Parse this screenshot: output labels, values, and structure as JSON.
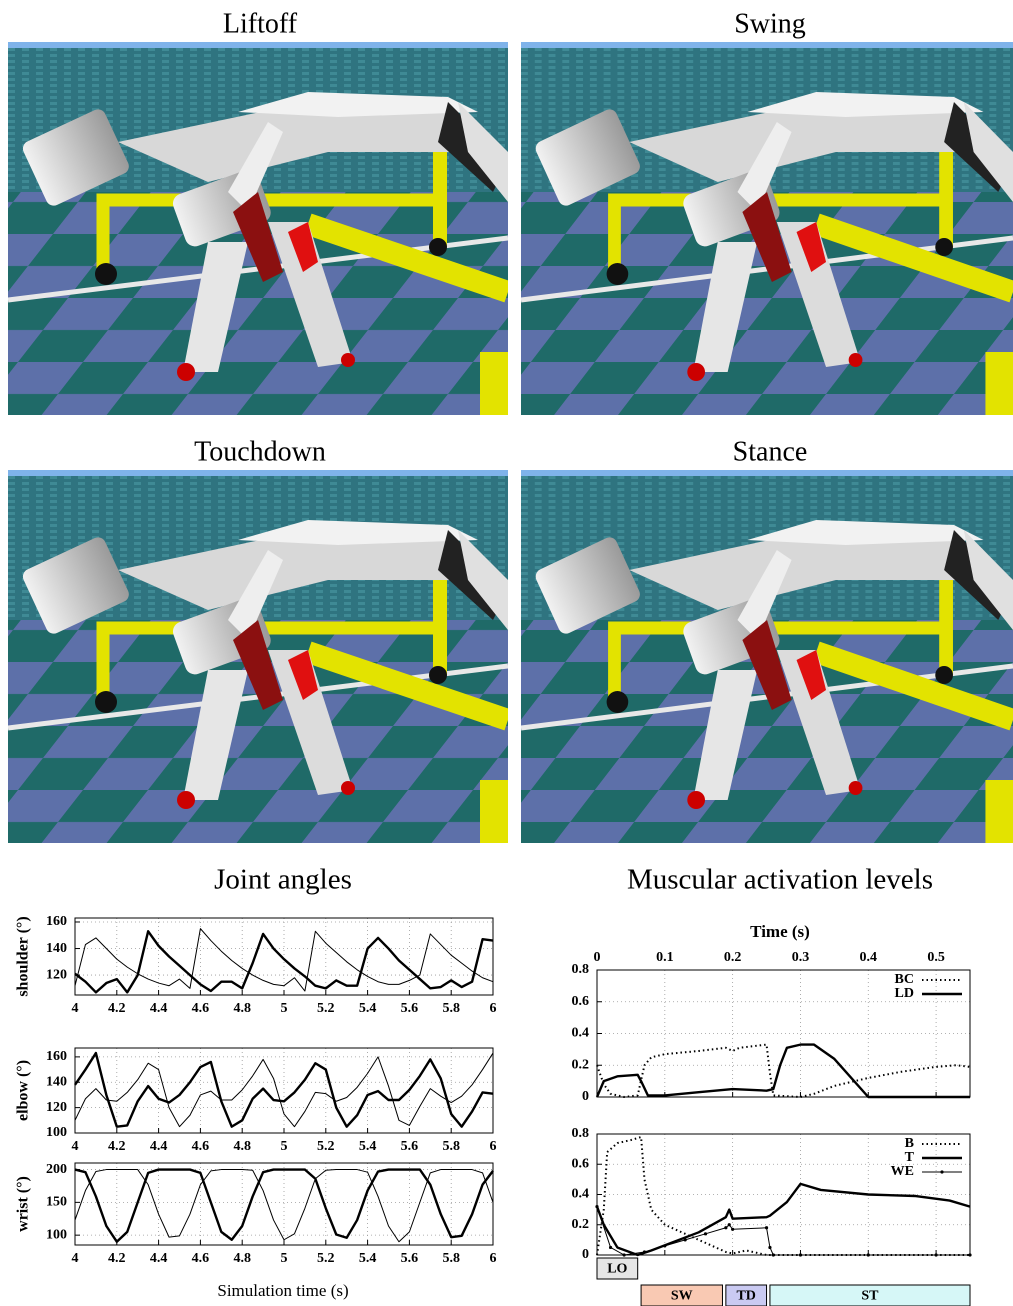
{
  "panels": [
    {
      "title": "Liftoff"
    },
    {
      "title": "Swing"
    },
    {
      "title": "Touchdown"
    },
    {
      "title": "Stance"
    }
  ],
  "chart_data": [
    {
      "type": "line",
      "title": "Joint angles",
      "xlabel": "Simulation time (s)",
      "grid": true,
      "x": [
        4,
        4.05,
        4.1,
        4.15,
        4.2,
        4.25,
        4.3,
        4.35,
        4.4,
        4.45,
        4.5,
        4.55,
        4.6,
        4.65,
        4.7,
        4.75,
        4.8,
        4.85,
        4.9,
        4.95,
        5,
        5.05,
        5.1,
        5.15,
        5.2,
        5.25,
        5.3,
        5.35,
        5.4,
        5.45,
        5.5,
        5.55,
        5.6,
        5.65,
        5.7,
        5.75,
        5.8,
        5.85,
        5.9,
        5.95,
        6
      ],
      "xlim": [
        4,
        6
      ],
      "xticks": [
        4,
        4.2,
        4.4,
        4.6,
        4.8,
        5,
        5.2,
        5.4,
        5.6,
        5.8,
        6
      ],
      "subplots": [
        {
          "ylabel": "shoulder (°)",
          "ylim": [
            105,
            163
          ],
          "yticks": [
            120,
            140,
            160
          ],
          "series": [
            {
              "color": "#000000",
              "style": "thick",
              "values": [
                121,
                115,
                107,
                114,
                117,
                107,
                120,
                153,
                142,
                134,
                127,
                120,
                113,
                108,
                115,
                115,
                110,
                129,
                151,
                140,
                132,
                125,
                119,
                112,
                110,
                116,
                112,
                112,
                140,
                148,
                140,
                131,
                124,
                117,
                110,
                111,
                116,
                111,
                115,
                147,
                146
              ]
            },
            {
              "color": "#000000",
              "style": "thin",
              "values": [
                112,
                143,
                148,
                140,
                132,
                126,
                121,
                117,
                114,
                112,
                117,
                110,
                155,
                146,
                138,
                131,
                125,
                120,
                116,
                113,
                112,
                118,
                108,
                153,
                144,
                137,
                130,
                124,
                119,
                115,
                113,
                113,
                116,
                120,
                151,
                143,
                135,
                129,
                123,
                118,
                115
              ]
            }
          ]
        },
        {
          "ylabel": "elbow (°)",
          "ylim": [
            100,
            167
          ],
          "yticks": [
            100,
            120,
            140,
            160
          ],
          "series": [
            {
              "color": "#000000",
              "style": "thick",
              "values": [
                138,
                150,
                163,
                130,
                105,
                106,
                125,
                137,
                127,
                124,
                130,
                140,
                152,
                156,
                125,
                105,
                110,
                127,
                135,
                126,
                125,
                132,
                142,
                155,
                150,
                120,
                105,
                114,
                130,
                133,
                126,
                126,
                134,
                145,
                158,
                143,
                115,
                105,
                117,
                132,
                131
              ]
            },
            {
              "color": "#000000",
              "style": "thin",
              "values": [
                110,
                127,
                135,
                126,
                125,
                132,
                142,
                155,
                150,
                120,
                105,
                114,
                130,
                133,
                126,
                126,
                134,
                145,
                158,
                143,
                115,
                105,
                117,
                132,
                131,
                125,
                128,
                136,
                147,
                160,
                137,
                110,
                106,
                121,
                135,
                129,
                124,
                129,
                138,
                150,
                163
              ]
            }
          ]
        },
        {
          "ylabel": "wrist (°)",
          "ylim": [
            85,
            210
          ],
          "yticks": [
            100,
            150,
            200
          ],
          "series": [
            {
              "color": "#000000",
              "style": "thick",
              "values": [
                200,
                196,
                159,
                114,
                90,
                105,
                150,
                195,
                200,
                200,
                200,
                200,
                195,
                150,
                105,
                93,
                114,
                159,
                196,
                200,
                200,
                200,
                200,
                186,
                141,
                101,
                96,
                123,
                168,
                197,
                200,
                200,
                200,
                200,
                177,
                132,
                97,
                99,
                132,
                177,
                198
              ]
            },
            {
              "color": "#000000",
              "style": "thin",
              "values": [
                123,
                168,
                197,
                200,
                200,
                200,
                200,
                177,
                132,
                97,
                99,
                132,
                177,
                198,
                200,
                200,
                200,
                199,
                168,
                123,
                93,
                102,
                141,
                186,
                199,
                200,
                200,
                200,
                196,
                159,
                114,
                90,
                105,
                150,
                195,
                200,
                200,
                200,
                200,
                195,
                150
              ]
            }
          ]
        }
      ]
    },
    {
      "type": "line",
      "title": "Muscular activation levels",
      "xlabel": "Time (s)",
      "grid": true,
      "legend": "upper right",
      "xlim": [
        0,
        0.55
      ],
      "xticks": [
        0,
        0.1,
        0.2,
        0.3,
        0.4,
        0.5
      ],
      "subplots": [
        {
          "ylim": [
            0,
            0.8
          ],
          "yticks": [
            0,
            0.2,
            0.4,
            0.6,
            0.8
          ],
          "series": [
            {
              "name": "BC",
              "color": "#000000",
              "style": "dotted",
              "x": [
                0,
                0.01,
                0.02,
                0.04,
                0.06,
                0.07,
                0.08,
                0.1,
                0.15,
                0.19,
                0.2,
                0.21,
                0.25,
                0.255,
                0.26,
                0.3,
                0.32,
                0.35,
                0.4,
                0.45,
                0.5,
                0.53,
                0.55
              ],
              "values": [
                0.2,
                0.08,
                0.02,
                0,
                0.01,
                0.2,
                0.25,
                0.27,
                0.29,
                0.31,
                0.29,
                0.31,
                0.33,
                0.15,
                0.01,
                0,
                0.02,
                0.07,
                0.12,
                0.16,
                0.19,
                0.2,
                0.19
              ]
            },
            {
              "name": "LD",
              "color": "#000000",
              "style": "thick",
              "x": [
                0,
                0.01,
                0.03,
                0.06,
                0.065,
                0.075,
                0.1,
                0.15,
                0.2,
                0.25,
                0.26,
                0.27,
                0.28,
                0.3,
                0.32,
                0.35,
                0.4,
                0.55
              ],
              "values": [
                0,
                0.1,
                0.13,
                0.14,
                0.1,
                0.01,
                0.01,
                0.03,
                0.05,
                0.04,
                0.05,
                0.2,
                0.31,
                0.33,
                0.33,
                0.24,
                0,
                0
              ]
            }
          ]
        },
        {
          "ylim": [
            0,
            0.8
          ],
          "yticks": [
            0,
            0.2,
            0.4,
            0.6,
            0.8
          ],
          "series": [
            {
              "name": "B",
              "color": "#000000",
              "style": "dotted",
              "x": [
                0,
                0.01,
                0.015,
                0.03,
                0.05,
                0.065,
                0.07,
                0.08,
                0.1,
                0.15,
                0.19,
                0.2,
                0.22,
                0.25,
                0.3,
                0.55
              ],
              "values": [
                0,
                0.3,
                0.68,
                0.74,
                0.76,
                0.78,
                0.5,
                0.3,
                0.2,
                0.1,
                0.02,
                0.01,
                0.03,
                0,
                0,
                0
              ]
            },
            {
              "name": "T",
              "color": "#000000",
              "style": "thick",
              "x": [
                0,
                0.01,
                0.03,
                0.06,
                0.08,
                0.15,
                0.19,
                0.195,
                0.2,
                0.25,
                0.255,
                0.28,
                0.3,
                0.33,
                0.4,
                0.47,
                0.52,
                0.55
              ],
              "values": [
                0.32,
                0.2,
                0.05,
                0,
                0.03,
                0.15,
                0.25,
                0.3,
                0.24,
                0.25,
                0.26,
                0.35,
                0.47,
                0.43,
                0.4,
                0.39,
                0.36,
                0.32
              ]
            },
            {
              "name": "WE",
              "color": "#000000",
              "style": "points",
              "x": [
                0,
                0.02,
                0.04,
                0.07,
                0.1,
                0.13,
                0.16,
                0.19,
                0.195,
                0.2,
                0.25,
                0.255,
                0.26,
                0.3,
                0.4,
                0.5,
                0.55
              ],
              "values": [
                0.32,
                0.05,
                0,
                0.02,
                0.06,
                0.1,
                0.14,
                0.18,
                0.2,
                0.17,
                0.18,
                0.05,
                0,
                0,
                0,
                0,
                0
              ]
            }
          ]
        }
      ],
      "phases": [
        {
          "label": "LO",
          "start": 0,
          "end": 0.06,
          "color": "#e6e6e6"
        },
        {
          "label": "SW",
          "start": 0.065,
          "end": 0.185,
          "color": "#f9c9b3"
        },
        {
          "label": "TD",
          "start": 0.19,
          "end": 0.25,
          "color": "#cacaf2"
        },
        {
          "label": "ST",
          "start": 0.255,
          "end": 0.55,
          "color": "#d6f7f7"
        }
      ]
    }
  ]
}
